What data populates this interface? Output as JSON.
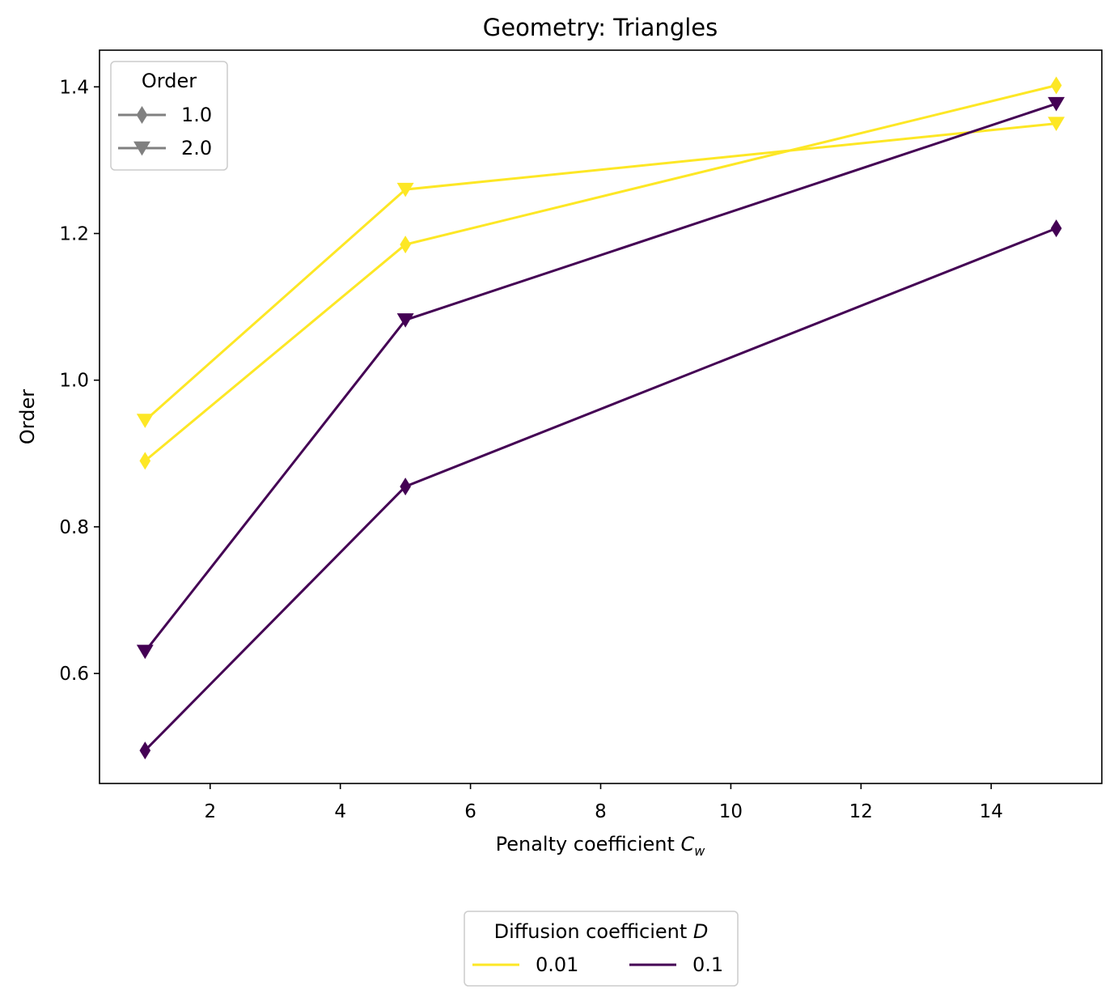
{
  "chart_data": {
    "type": "line",
    "title": "Geometry: Triangles",
    "xlabel": {
      "main": "Penalty coefficient ",
      "symbol": "C",
      "subscript": "w"
    },
    "ylabel": "Order",
    "xlim": [
      0.3,
      15.7
    ],
    "ylim": [
      0.45,
      1.45
    ],
    "xticks": [
      2,
      4,
      6,
      8,
      10,
      12,
      14
    ],
    "yticks": [
      0.6,
      0.8,
      1.0,
      1.2,
      1.4
    ],
    "ytick_labels": [
      "0.6",
      "0.8",
      "1.0",
      "1.2",
      "1.4"
    ],
    "grid": false,
    "x": [
      1,
      5,
      15
    ],
    "series": [
      {
        "diffusion": "0.01",
        "order": "1.0",
        "color": "#fde725",
        "marker": "diamond",
        "values": [
          0.89,
          1.185,
          1.402
        ]
      },
      {
        "diffusion": "0.01",
        "order": "2.0",
        "color": "#fde725",
        "marker": "triangle-down",
        "values": [
          0.945,
          1.26,
          1.35
        ]
      },
      {
        "diffusion": "0.1",
        "order": "1.0",
        "color": "#440154",
        "marker": "diamond",
        "values": [
          0.495,
          0.855,
          1.207
        ]
      },
      {
        "diffusion": "0.1",
        "order": "2.0",
        "color": "#440154",
        "marker": "triangle-down",
        "values": [
          0.63,
          1.082,
          1.377
        ]
      }
    ],
    "legend_order": {
      "title": "Order",
      "placement": "top-left",
      "entries": [
        {
          "label": "1.0",
          "marker": "diamond",
          "color": "#808080"
        },
        {
          "label": "2.0",
          "marker": "triangle-down",
          "color": "#808080"
        }
      ]
    },
    "legend_diffusion": {
      "title_main": "Diffusion coefficient ",
      "title_symbol": "D",
      "placement": "bottom-center",
      "entries": [
        {
          "label": "0.01",
          "color": "#fde725"
        },
        {
          "label": "0.1",
          "color": "#440154"
        }
      ]
    }
  }
}
